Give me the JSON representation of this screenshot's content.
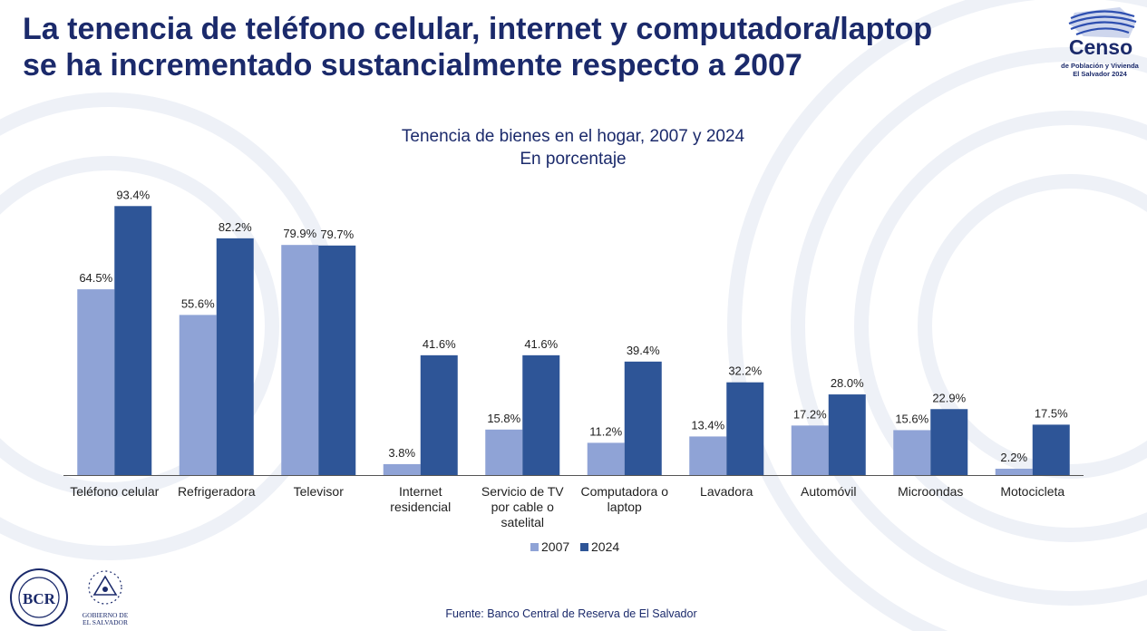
{
  "headline": {
    "line1": "La tenencia de teléfono celular, internet y computadora/laptop",
    "line2": "se ha incrementado sustancialmente respecto a 2007"
  },
  "logo": {
    "word": "Censo",
    "sub1": "de Población y Vivienda",
    "sub2": "El Salvador 2024"
  },
  "chart_data": {
    "type": "bar",
    "title": "Tenencia de bienes en el hogar, 2007 y 2024",
    "subtitle": "En porcentaje",
    "categories": [
      [
        "Teléfono celular"
      ],
      [
        "Refrigeradora"
      ],
      [
        "Televisor"
      ],
      [
        "Internet",
        "residencial"
      ],
      [
        "Servicio de TV",
        "por cable o",
        "satelital"
      ],
      [
        "Computadora o",
        "laptop"
      ],
      [
        "Lavadora"
      ],
      [
        "Automóvil"
      ],
      [
        "Microondas"
      ],
      [
        "Motocicleta"
      ]
    ],
    "series": [
      {
        "name": "2007",
        "color": "#8fa3d6",
        "values": [
          64.5,
          55.6,
          79.9,
          3.8,
          15.8,
          11.2,
          13.4,
          17.2,
          15.6,
          2.2
        ],
        "labels": [
          "64.5%",
          "55.6%",
          "79.9%",
          "3.8%",
          "15.8%",
          "11.2%",
          "13.4%",
          "17.2%",
          "15.6%",
          "2.2%"
        ]
      },
      {
        "name": "2024",
        "color": "#2e5597",
        "values": [
          93.4,
          82.2,
          79.7,
          41.6,
          41.6,
          39.4,
          32.2,
          28.0,
          22.9,
          17.5
        ],
        "labels": [
          "93.4%",
          "82.2%",
          "79.7%",
          "41.6%",
          "41.6%",
          "39.4%",
          "32.2%",
          "28.0%",
          "22.9%",
          "17.5%"
        ]
      }
    ],
    "ylim": [
      0,
      100
    ],
    "legend_position": "bottom-center",
    "grid": false
  },
  "source": "Fuente: Banco Central de Reserva de El Salvador",
  "footer_logos": {
    "bcr": "BCR",
    "gob_line1": "GOBIERNO DE",
    "gob_line2": "EL SALVADOR"
  },
  "colors": {
    "brand": "#1b2a6b",
    "series_2007": "#8fa3d6",
    "series_2024": "#2e5597"
  }
}
